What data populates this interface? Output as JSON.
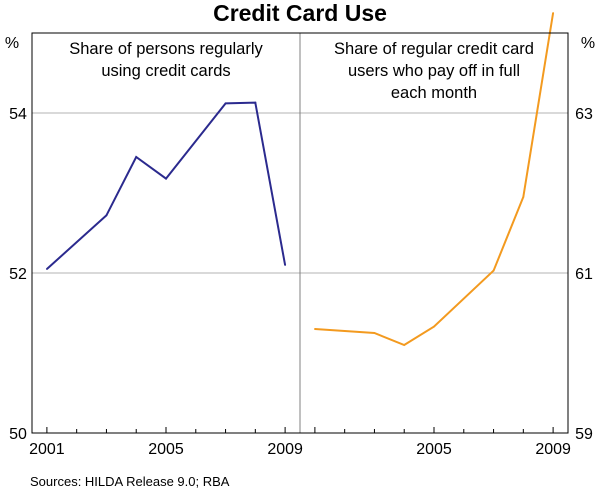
{
  "title": "Credit Card Use",
  "source": "Sources: HILDA Release 9.0; RBA",
  "colors": {
    "left_series": "#2b2a8e",
    "right_series": "#f39a1f",
    "grid": "#b3b3b3",
    "frame": "#000000",
    "divider": "#808080"
  },
  "chart_data": [
    {
      "type": "line",
      "panel": "left",
      "title_lines": [
        "Share of persons regularly",
        "using credit cards"
      ],
      "unit": "%",
      "ylim": [
        50,
        55
      ],
      "yticks": [
        50,
        52,
        54
      ],
      "xlim": [
        2000.5,
        2009.5
      ],
      "xticks": [
        2001,
        2005,
        2009
      ],
      "xtick_labels": [
        "2001",
        "2005",
        "2009"
      ],
      "grid": true,
      "series": [
        {
          "x": [
            2001,
            2003,
            2004,
            2005,
            2007,
            2008,
            2009
          ],
          "values": [
            52.05,
            52.72,
            53.45,
            53.18,
            54.12,
            54.13,
            52.1
          ]
        }
      ]
    },
    {
      "type": "line",
      "panel": "right",
      "title_lines": [
        "Share of regular credit card",
        "users who pay off in full",
        "each month"
      ],
      "unit": "%",
      "ylim": [
        59,
        64
      ],
      "yticks": [
        59,
        61,
        63
      ],
      "xlim": [
        2000.5,
        2009.5
      ],
      "xticks": [
        2005,
        2009
      ],
      "xtick_labels": [
        "2005",
        "2009"
      ],
      "grid": true,
      "series": [
        {
          "x": [
            2001,
            2003,
            2004,
            2005,
            2007,
            2008,
            2009
          ],
          "values": [
            60.3,
            60.25,
            60.1,
            60.33,
            61.03,
            61.95,
            64.25
          ]
        }
      ]
    }
  ]
}
